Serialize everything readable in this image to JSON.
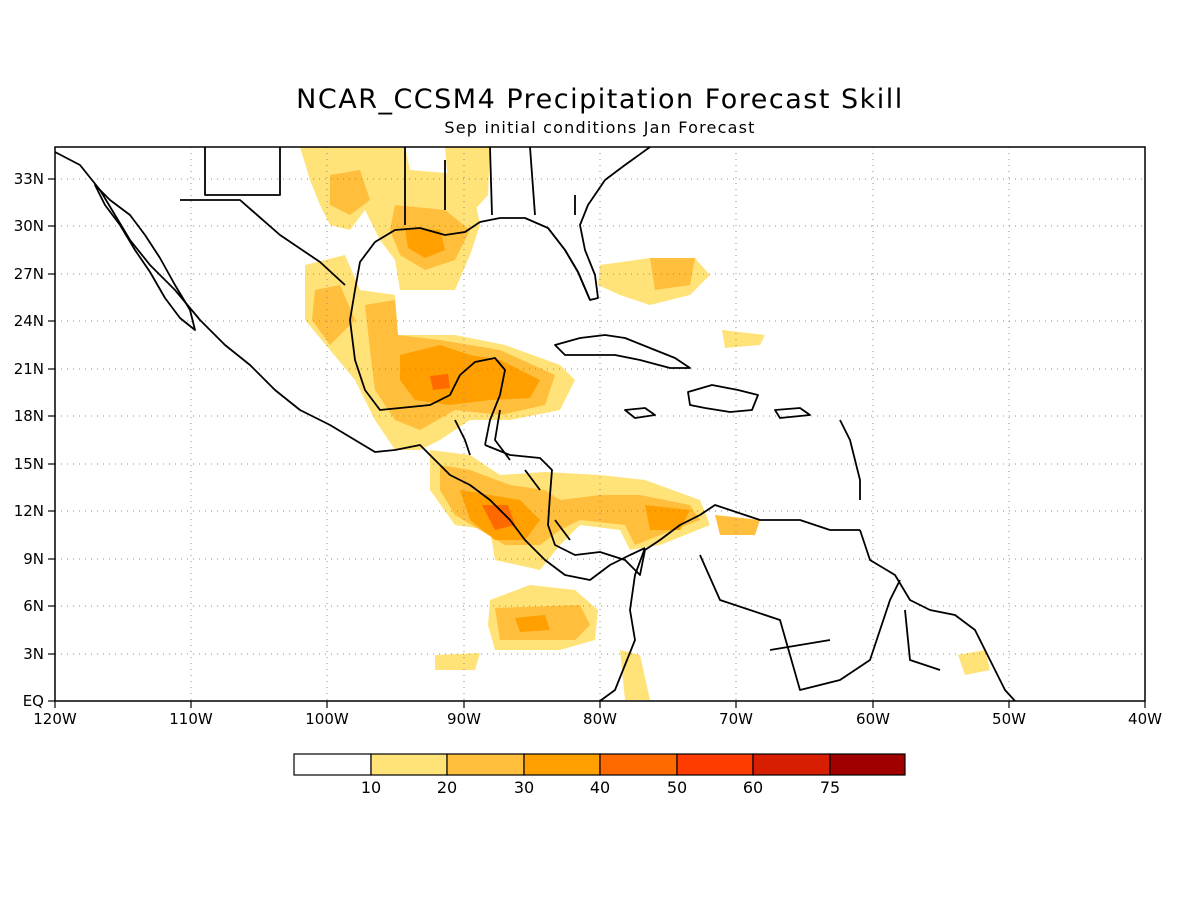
{
  "title": "NCAR_CCSM4 Precipitation Forecast Skill",
  "subtitle": "Sep initial conditions  Jan Forecast",
  "map": {
    "lon_range": [
      -120,
      -40
    ],
    "lat_range": [
      0,
      35
    ],
    "x_tick_labels": [
      "120W",
      "110W",
      "100W",
      "90W",
      "80W",
      "70W",
      "60W",
      "50W",
      "40W"
    ],
    "y_tick_labels": [
      "EQ",
      "3N",
      "6N",
      "9N",
      "12N",
      "15N",
      "18N",
      "21N",
      "24N",
      "27N",
      "30N",
      "33N"
    ],
    "grid": "dotted"
  },
  "colorbar": {
    "labels": [
      "10",
      "20",
      "30",
      "40",
      "50",
      "60",
      "75"
    ],
    "colors": [
      "#ffffff",
      "#ffe278",
      "#ffbe3c",
      "#ffa000",
      "#ff6a00",
      "#ff3c00",
      "#d81e00",
      "#a00000"
    ]
  }
}
